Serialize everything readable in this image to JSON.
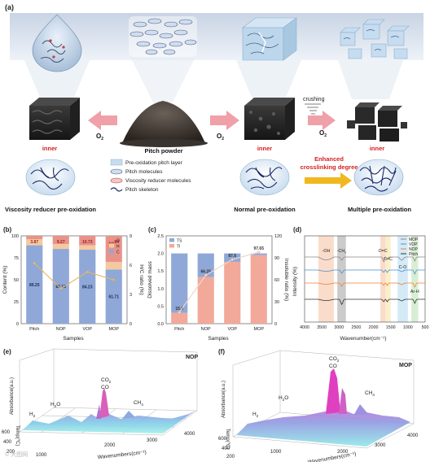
{
  "panel_a": {
    "letter": "(a)",
    "pitch_powder": "Pitch powder",
    "inner": "inner",
    "o2": "O",
    "o2_sub": "2",
    "crushing": "crushing",
    "enhanced_1": "Enhanced",
    "enhanced_2": "crosslinking degree",
    "legend": [
      "Pre-oxidation pitch layer",
      "Pitch molecules",
      "Viscosity reducer molecules",
      "Pitch skeleton"
    ],
    "bottom_labels": [
      "Viscosity reducer pre-oxidation",
      "Normal pre-oxidation",
      "Multiple pre-oxidation"
    ],
    "colors": {
      "arrow_pink": "#f0a0a8",
      "red_text": "#d42020",
      "yellow_arrow": "#f0b820"
    }
  },
  "chart_data": [
    {
      "id": "b",
      "letter": "(b)",
      "type": "bar",
      "categories": [
        "Pitch",
        "NOP",
        "VOP",
        "MOP"
      ],
      "series": [
        {
          "name": "C",
          "values": [
            89.25,
            85.13,
            84.23,
            61.71
          ],
          "color": "#8fa8d8"
        },
        {
          "name": "H",
          "values": [
            6.88,
            5.6,
            5.04,
            8.45
          ],
          "color": "#f4c9a0"
        },
        {
          "name": "O",
          "values": [
            3.87,
            9.27,
            10.73,
            29.84
          ],
          "color": "#e8938a"
        }
      ],
      "line": {
        "name": "H/C ratio",
        "values": [
          6.2,
          3.6,
          5.3,
          4.5
        ]
      },
      "value_labels": {
        "C": [
          "89.25",
          "85.13",
          "84.23",
          "61.71"
        ],
        "O": [
          "3.87",
          "9.27",
          "10.73",
          "29.84"
        ]
      },
      "xlabel": "Samples",
      "ylabel": "Content (%)",
      "y2label": "H/C ratio (%)",
      "ylim": [
        0,
        100
      ],
      "yticks": [
        "0",
        "25",
        "50",
        "75",
        "100"
      ],
      "y2lim": [
        0,
        9
      ],
      "y2ticks": [
        "0",
        "3",
        "6",
        "9"
      ],
      "legend_position": "top-right"
    },
    {
      "id": "c",
      "letter": "(c)",
      "type": "bar",
      "categories": [
        "Pitch",
        "NOP",
        "VOP",
        "MOP"
      ],
      "series": [
        {
          "name": "TI",
          "values": [
            0.31,
            1.33,
            1.76,
            1.95
          ],
          "color": "#f2a99a"
        },
        {
          "name": "TS",
          "values": [
            1.69,
            0.67,
            0.24,
            0.05
          ],
          "color": "#8fa8d8"
        }
      ],
      "line": {
        "name": "Insoluble ratio",
        "values": [
          15.6,
          66.25,
          87.6,
          97.65
        ]
      },
      "value_labels": [
        "15.6",
        "66.25",
        "87.6",
        "97.65"
      ],
      "xlabel": "Samples",
      "ylabel": "Dissolved mass",
      "y2label": "Insoluble ratio (%)",
      "ylim": [
        0,
        2.5
      ],
      "yticks": [
        "0.0",
        "0.5",
        "1.0",
        "1.5",
        "2.0",
        "2.5"
      ],
      "y2lim": [
        0,
        120
      ],
      "y2ticks": [
        "0",
        "30",
        "60",
        "90",
        "120"
      ],
      "legend_position": "top-left"
    },
    {
      "id": "d",
      "letter": "(d)",
      "type": "line",
      "xlim": [
        4000,
        500
      ],
      "xticks": [
        "4000",
        "3500",
        "3000",
        "2500",
        "2000",
        "1500",
        "1000",
        "500"
      ],
      "xlabel": "Wavenumber(cm⁻¹)",
      "ylabel": "Intensity (%)",
      "series": [
        {
          "name": "MOP",
          "color": "#888888"
        },
        {
          "name": "VOP",
          "color": "#4a90c8"
        },
        {
          "name": "NOP",
          "color": "#f08030"
        },
        {
          "name": "Pitch",
          "color": "#333333"
        }
      ],
      "bands": [
        {
          "label": "-OH",
          "from": 3600,
          "to": 3150,
          "color": "#f6c0a0"
        },
        {
          "label": "-CH",
          "sub": "x",
          "from": 3050,
          "to": 2800,
          "color": "#a0a0a0"
        },
        {
          "label": "O=C",
          "from": 1800,
          "to": 1650,
          "color": "#f6c0a0"
        },
        {
          "label": "C=C",
          "from": 1650,
          "to": 1500,
          "color": "#f8e0a0"
        },
        {
          "label": "C-O",
          "from": 1300,
          "to": 1000,
          "color": "#b0d8f0"
        },
        {
          "label": "Ar-H",
          "from": 900,
          "to": 700,
          "color": "#b8e0b0"
        }
      ],
      "legend_position": "top-right"
    },
    {
      "id": "e",
      "letter": "(e)",
      "type": "surface3d",
      "sample": "NOP",
      "zlabel": "Absorbance(a.u.)",
      "ylabel": "Temp(℃)",
      "xlabel": "Wavenumbers(cm⁻¹)",
      "xticks": [
        "1000",
        "2000",
        "3000",
        "4000"
      ],
      "yticks": [
        "200",
        "400",
        "600"
      ],
      "peaks": [
        "H",
        "H",
        "CO",
        "CO",
        "CH"
      ],
      "peak_labels": {
        "h2": "H",
        "h2o": "H",
        "h2o_o": "O",
        "co2": "CO",
        "co": "CO",
        "ch4": "CH",
        "sub2": "2",
        "sub4": "4"
      }
    },
    {
      "id": "f",
      "letter": "(f)",
      "type": "surface3d",
      "sample": "MOP",
      "zlabel": "Absorbance(a.u.)",
      "ylabel": "Temp(℃)",
      "xlabel": "Wavenumbers(cm⁻¹)",
      "xticks": [
        "1000",
        "2000",
        "3000",
        "4000"
      ],
      "yticks": [
        "200",
        "400",
        "600"
      ],
      "peak_labels": {
        "h2": "H",
        "h2o": "H",
        "h2o_o": "O",
        "co2": "CO",
        "co": "CO",
        "ch4": "CH",
        "sub2": "2",
        "sub4": "4"
      }
    }
  ],
  "watermark": "© 大图网"
}
